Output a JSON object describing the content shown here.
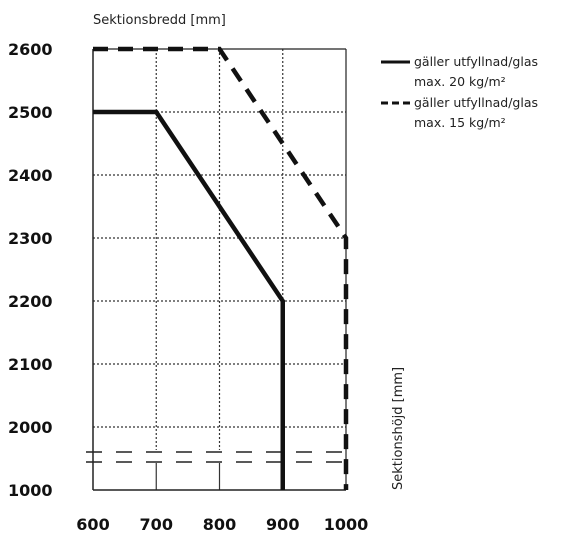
{
  "chart_data": {
    "type": "line",
    "xlabel": "Sektionsbredd [mm]",
    "ylabel": "Sektionshöjd [mm]",
    "x_ticks": [
      "600",
      "700",
      "800",
      "900",
      "1000"
    ],
    "y_ticks": [
      "2600",
      "2500",
      "2400",
      "2300",
      "2200",
      "2100",
      "2000",
      "1000"
    ],
    "xlim": [
      600,
      1000
    ],
    "ylim": [
      1000,
      2600
    ],
    "y_axis_break": "between 1000 and 2000",
    "grid": true,
    "legend_position": "right",
    "legend": [
      {
        "line1": "gäller utfyllnad/glas",
        "line2": "max. 20 kg/m²",
        "style": "solid"
      },
      {
        "line1": "gäller utfyllnad/glas",
        "line2": "max. 15 kg/m²",
        "style": "dashed"
      }
    ],
    "series": [
      {
        "style": "solid",
        "points": [
          [
            600,
            2500
          ],
          [
            700,
            2500
          ],
          [
            900,
            2200
          ],
          [
            900,
            1000
          ]
        ]
      },
      {
        "style": "dashed",
        "points": [
          [
            600,
            2600
          ],
          [
            800,
            2600
          ],
          [
            1000,
            2300
          ],
          [
            1000,
            1000
          ]
        ]
      }
    ]
  }
}
